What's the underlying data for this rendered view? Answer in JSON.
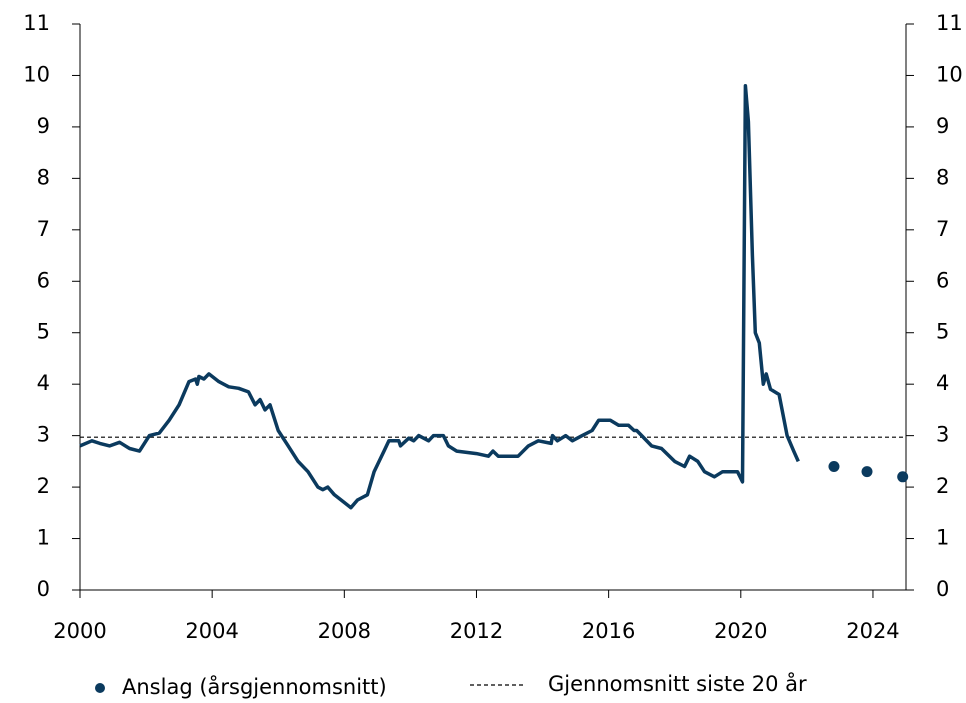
{
  "chart_data": {
    "type": "line",
    "xlim": [
      2000,
      2025
    ],
    "xticks": [
      2000,
      2004,
      2008,
      2012,
      2016,
      2020,
      2024
    ],
    "ylim": [
      0,
      11
    ],
    "yticks": [
      0,
      1,
      2,
      3,
      4,
      5,
      6,
      7,
      8,
      9,
      10,
      11
    ],
    "y2lim": [
      0,
      11
    ],
    "y2ticks": [
      0,
      1,
      2,
      3,
      4,
      5,
      6,
      7,
      8,
      9,
      10,
      11
    ],
    "series": [
      {
        "color": "#0b3a5e",
        "x": [
          2000.0,
          2000.36,
          2000.6,
          2000.9,
          2001.2,
          2001.5,
          2001.8,
          2002.1,
          2002.4,
          2002.7,
          2003.0,
          2003.3,
          2003.5,
          2003.55,
          2003.6,
          2003.75,
          2003.9,
          2004.2,
          2004.5,
          2004.8,
          2005.1,
          2005.3,
          2005.45,
          2005.6,
          2005.75,
          2006.0,
          2006.3,
          2006.6,
          2006.9,
          2007.2,
          2007.35,
          2007.5,
          2007.7,
          2008.0,
          2008.2,
          2008.4,
          2008.7,
          2008.9,
          2009.2,
          2009.35,
          2009.65,
          2009.7,
          2009.95,
          2010.1,
          2010.25,
          2010.55,
          2010.7,
          2011.0,
          2011.15,
          2011.4,
          2012.0,
          2012.36,
          2012.5,
          2012.66,
          2013.26,
          2013.57,
          2013.87,
          2014.26,
          2014.3,
          2014.45,
          2014.7,
          2014.9,
          2015.2,
          2015.5,
          2015.7,
          2016.05,
          2016.3,
          2016.6,
          2016.77,
          2016.85,
          2017.0,
          2017.3,
          2017.6,
          2018.0,
          2018.3,
          2018.45,
          2018.7,
          2018.9,
          2019.2,
          2019.45,
          2019.9,
          2020.05,
          2020.14,
          2020.23,
          2020.35,
          2020.44,
          2020.56,
          2020.68,
          2020.77,
          2020.9,
          2021.16,
          2021.4,
          2021.6,
          2021.74
        ],
        "values": [
          2.8,
          2.9,
          2.85,
          2.8,
          2.87,
          2.75,
          2.7,
          3.0,
          3.05,
          3.3,
          3.6,
          4.05,
          4.1,
          4.0,
          4.15,
          4.1,
          4.2,
          4.05,
          3.95,
          3.92,
          3.85,
          3.6,
          3.7,
          3.5,
          3.6,
          3.1,
          2.8,
          2.5,
          2.3,
          2.0,
          1.95,
          2.0,
          1.85,
          1.7,
          1.6,
          1.75,
          1.85,
          2.3,
          2.7,
          2.9,
          2.9,
          2.8,
          2.95,
          2.9,
          3.0,
          2.9,
          3.0,
          3.0,
          2.8,
          2.7,
          2.65,
          2.6,
          2.7,
          2.6,
          2.6,
          2.8,
          2.9,
          2.85,
          3.0,
          2.9,
          3.0,
          2.9,
          3.0,
          3.1,
          3.3,
          3.3,
          3.2,
          3.2,
          3.1,
          3.1,
          3.0,
          2.8,
          2.75,
          2.5,
          2.4,
          2.6,
          2.5,
          2.3,
          2.2,
          2.3,
          2.3,
          2.1,
          9.8,
          9.1,
          6.5,
          5.0,
          4.8,
          4.0,
          4.2,
          3.9,
          3.8,
          3.0,
          2.7,
          2.5
        ]
      },
      {
        "name": "Anslag (årsgjennomsnitt)",
        "color": "#0b3a5e",
        "marker": "dot",
        "x": [
          2022.82,
          2023.82,
          2024.9
        ],
        "values": [
          2.4,
          2.3,
          2.2
        ]
      }
    ],
    "reference_line": {
      "label": "Gjennomsnitt siste 20 år",
      "value": 2.97,
      "color": "#000000",
      "style": "dashed"
    }
  }
}
